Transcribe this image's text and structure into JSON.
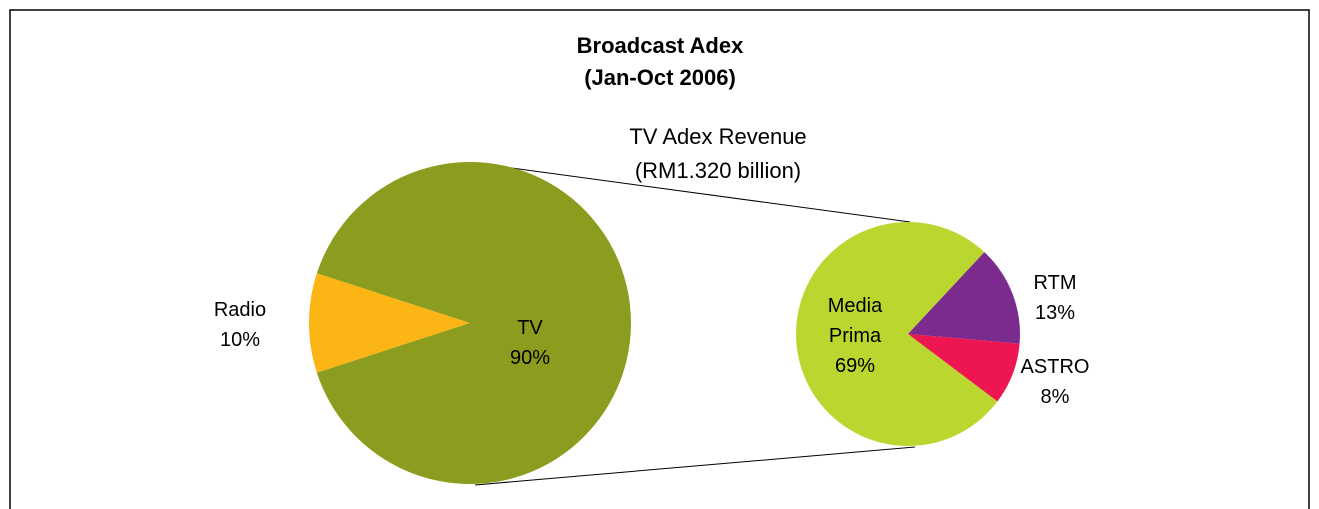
{
  "chart_data": [
    {
      "type": "pie",
      "title": [
        "Broadcast Adex",
        "(Jan-Oct 2006)"
      ],
      "categories": [
        "Radio",
        "TV"
      ],
      "values": [
        10,
        90
      ],
      "value_labels": [
        "10%",
        "90%"
      ],
      "colors": [
        "#fbb616",
        "#8c9c1e"
      ]
    },
    {
      "type": "pie",
      "title": [
        "TV Adex Revenue",
        "(RM1.320 billion)"
      ],
      "categories": [
        "Media Prima",
        "RTM",
        "ASTRO"
      ],
      "values": [
        69,
        13,
        8
      ],
      "value_labels": [
        "69%",
        "13%",
        "8%"
      ],
      "colors": [
        "#bcd630",
        "#7b2a8e",
        "#ee1650"
      ]
    }
  ]
}
